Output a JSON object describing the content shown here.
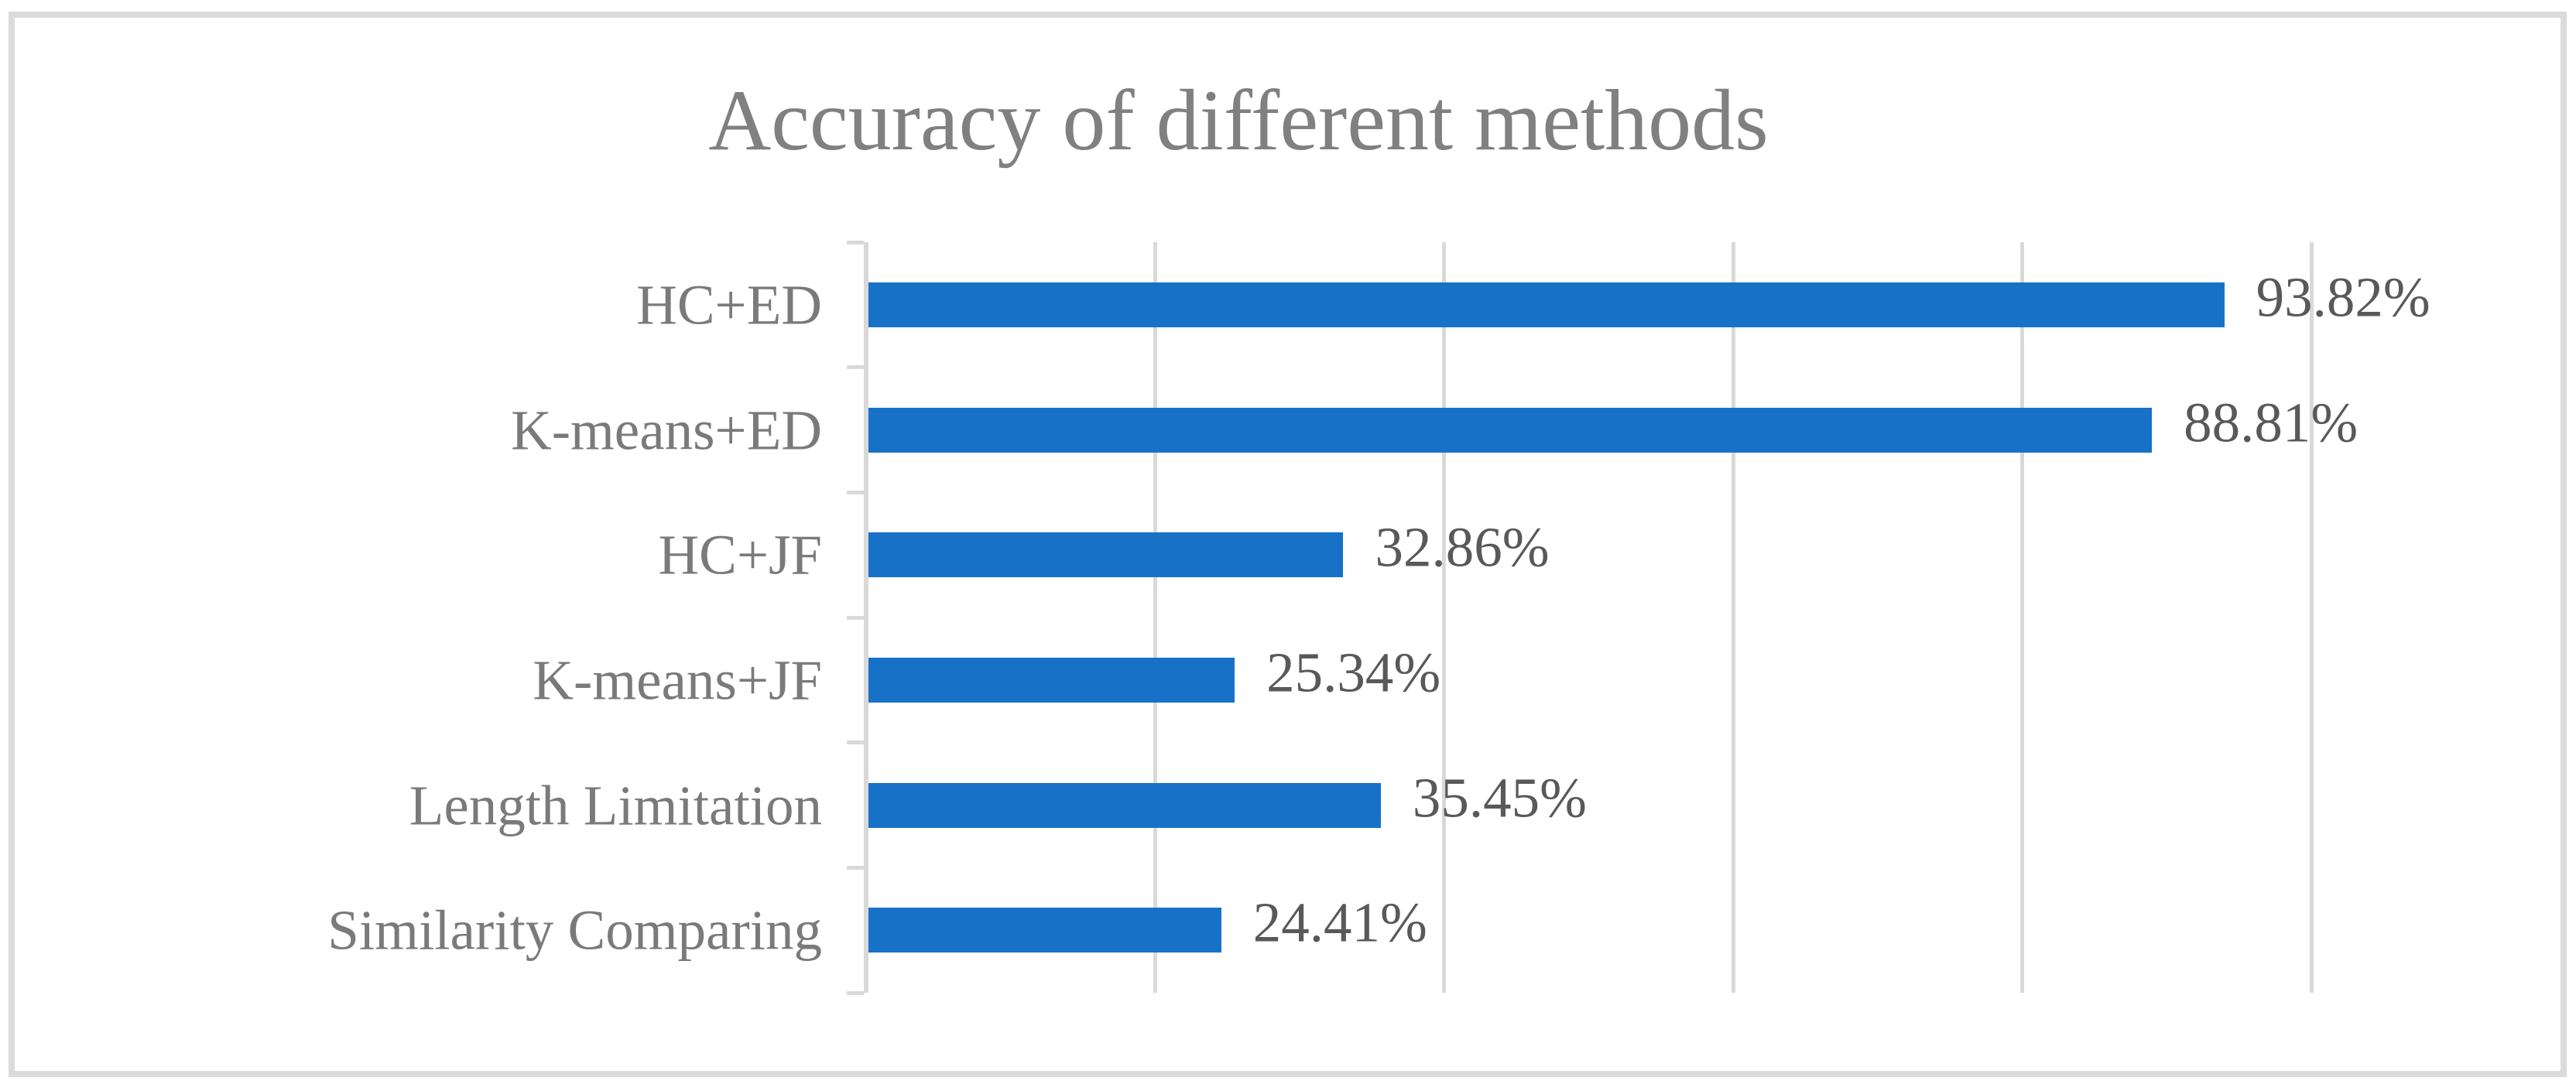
{
  "figure": {
    "background": "#FFFFFF",
    "frame_border_color": "#DBDBDB"
  },
  "chart_data": {
    "type": "bar",
    "orientation": "horizontal",
    "title": "Accuracy of different methods",
    "categories": [
      "HC+ED",
      "K-means+ED",
      "HC+JF",
      "K-means+JF",
      "Length Limitation",
      "Similarity Comparing"
    ],
    "values": [
      93.82,
      88.81,
      32.86,
      25.34,
      35.45,
      24.41
    ],
    "data_labels": [
      "93.82%",
      "88.81%",
      "32.86%",
      "25.34%",
      "35.45%",
      "24.41%"
    ],
    "xlabel": "",
    "ylabel": "",
    "xlim": [
      0,
      100
    ],
    "gridline_step": 20,
    "grid": true,
    "legend": "none",
    "value_axis_tick_labels": "hidden"
  },
  "colors": {
    "bar": "#1772C7",
    "title_text": "#808080",
    "category_text": "#7A7A7A",
    "value_text": "#595959",
    "gridline": "#D9D9D9",
    "axis_line": "#D9D9D9",
    "tick": "#D9D9D9"
  }
}
